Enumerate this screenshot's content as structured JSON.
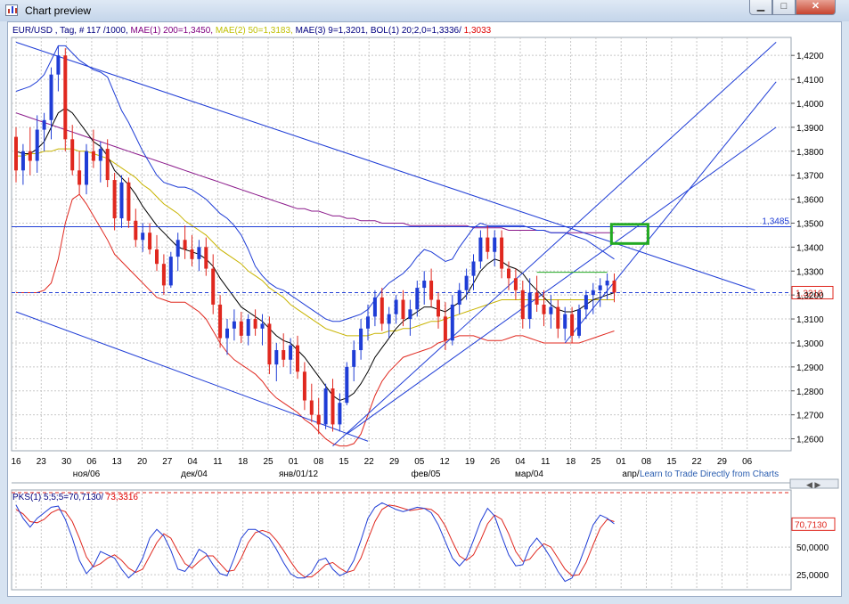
{
  "window": {
    "title": "Chart preview",
    "min_glyph": "▁",
    "max_glyph": "□",
    "close_glyph": "✕"
  },
  "link_text": "Learn to Trade Directly from Charts",
  "legend": [
    {
      "text": "EUR/USD , Tag, # 117 /1000,",
      "color": "#000080"
    },
    {
      "text": "MAE(1) 200=1,3450,",
      "color": "#800080"
    },
    {
      "text": "MAE(2) 50=1,3183,",
      "color": "#bfbf00"
    },
    {
      "text": "MAE(3) 9=1,3201,",
      "color": "#000080"
    },
    {
      "text": "BOL(1) 20;2,0=1,3336/",
      "color": "#000080"
    },
    {
      "text": "1,3033",
      "color": "#e00000"
    }
  ],
  "pks_legend": [
    {
      "text": "PKS(1) 5;5;5=70,7130/",
      "color": "#000080"
    },
    {
      "text": "73,3316",
      "color": "#e00000"
    }
  ],
  "colors": {
    "up": "#1f3dd6",
    "down": "#e0281f",
    "ma200": "#8b1a8b",
    "ma50": "#c8b400",
    "ma9": "#000000",
    "bb_upper": "#1f3dd6",
    "bb_lower": "#e0281f",
    "lines": "#1f3dd6",
    "box": "#22aa22",
    "grid": "#c7c7c7"
  },
  "chart_data": {
    "type": "candlestick",
    "symbol": "EUR/USD",
    "timeframe": "Tag",
    "ylim": [
      1.255,
      1.4275
    ],
    "y_ticks": [
      "1,4200",
      "1,4100",
      "1,4000",
      "1,3900",
      "1,3800",
      "1,3700",
      "1,3600",
      "1,3500",
      "1,3400",
      "1,3300",
      "1,3200",
      "1,3100",
      "1,3000",
      "1,2900",
      "1,2800",
      "1,2700",
      "1,2600"
    ],
    "y_tick_values": [
      1.42,
      1.41,
      1.4,
      1.39,
      1.38,
      1.37,
      1.36,
      1.35,
      1.34,
      1.33,
      1.32,
      1.31,
      1.3,
      1.29,
      1.28,
      1.27,
      1.26
    ],
    "x_day_ticks": [
      "16",
      "23",
      "30",
      "06",
      "13",
      "20",
      "27",
      "04",
      "11",
      "18",
      "25",
      "01",
      "08",
      "15",
      "22",
      "29",
      "05",
      "12",
      "19",
      "26",
      "04",
      "11",
      "18",
      "25",
      "01",
      "08",
      "15",
      "22",
      "29",
      "06"
    ],
    "x_month_labels": [
      "ноя/06",
      "дек/04",
      "янв/01/12",
      "фев/05",
      "мар/04",
      "апр/"
    ],
    "price_labels": [
      "1,3485",
      "1,3210"
    ],
    "hline_values": [
      1.3485,
      1.321
    ],
    "candles_ohlc": [
      [
        1.386,
        1.39,
        1.367,
        1.372
      ],
      [
        1.372,
        1.383,
        1.366,
        1.38
      ],
      [
        1.38,
        1.39,
        1.37,
        1.376
      ],
      [
        1.376,
        1.395,
        1.371,
        1.389
      ],
      [
        1.389,
        1.396,
        1.38,
        1.393
      ],
      [
        1.393,
        1.415,
        1.385,
        1.412
      ],
      [
        1.412,
        1.424,
        1.405,
        1.42
      ],
      [
        1.42,
        1.423,
        1.38,
        1.385
      ],
      [
        1.385,
        1.391,
        1.37,
        1.372
      ],
      [
        1.372,
        1.38,
        1.362,
        1.366
      ],
      [
        1.366,
        1.383,
        1.362,
        1.38
      ],
      [
        1.38,
        1.389,
        1.373,
        1.376
      ],
      [
        1.376,
        1.384,
        1.367,
        1.381
      ],
      [
        1.381,
        1.385,
        1.365,
        1.368
      ],
      [
        1.368,
        1.371,
        1.347,
        1.352
      ],
      [
        1.352,
        1.37,
        1.348,
        1.367
      ],
      [
        1.367,
        1.369,
        1.348,
        1.351
      ],
      [
        1.351,
        1.356,
        1.34,
        1.343
      ],
      [
        1.343,
        1.35,
        1.338,
        1.346
      ],
      [
        1.346,
        1.35,
        1.337,
        1.339
      ],
      [
        1.339,
        1.345,
        1.33,
        1.333
      ],
      [
        1.333,
        1.337,
        1.32,
        1.324
      ],
      [
        1.324,
        1.338,
        1.323,
        1.336
      ],
      [
        1.336,
        1.346,
        1.33,
        1.343
      ],
      [
        1.343,
        1.349,
        1.335,
        1.339
      ],
      [
        1.339,
        1.345,
        1.332,
        1.335
      ],
      [
        1.335,
        1.343,
        1.33,
        1.34
      ],
      [
        1.34,
        1.344,
        1.328,
        1.331
      ],
      [
        1.331,
        1.337,
        1.312,
        1.316
      ],
      [
        1.316,
        1.32,
        1.298,
        1.302
      ],
      [
        1.302,
        1.31,
        1.295,
        1.306
      ],
      [
        1.306,
        1.314,
        1.301,
        1.309
      ],
      [
        1.309,
        1.313,
        1.3,
        1.303
      ],
      [
        1.303,
        1.312,
        1.299,
        1.31
      ],
      [
        1.31,
        1.314,
        1.303,
        1.306
      ],
      [
        1.306,
        1.312,
        1.299,
        1.308
      ],
      [
        1.308,
        1.311,
        1.287,
        1.291
      ],
      [
        1.291,
        1.3,
        1.284,
        1.297
      ],
      [
        1.297,
        1.304,
        1.29,
        1.293
      ],
      [
        1.293,
        1.302,
        1.287,
        1.299
      ],
      [
        1.299,
        1.303,
        1.285,
        1.288
      ],
      [
        1.288,
        1.292,
        1.272,
        1.276
      ],
      [
        1.276,
        1.283,
        1.267,
        1.27
      ],
      [
        1.27,
        1.277,
        1.262,
        1.266
      ],
      [
        1.266,
        1.283,
        1.264,
        1.281
      ],
      [
        1.281,
        1.285,
        1.263,
        1.266
      ],
      [
        1.266,
        1.279,
        1.263,
        1.275
      ],
      [
        1.275,
        1.292,
        1.274,
        1.29
      ],
      [
        1.29,
        1.301,
        1.284,
        1.297
      ],
      [
        1.297,
        1.31,
        1.293,
        1.306
      ],
      [
        1.306,
        1.316,
        1.301,
        1.311
      ],
      [
        1.311,
        1.322,
        1.307,
        1.319
      ],
      [
        1.319,
        1.323,
        1.305,
        1.308
      ],
      [
        1.308,
        1.315,
        1.302,
        1.312
      ],
      [
        1.312,
        1.32,
        1.308,
        1.318
      ],
      [
        1.318,
        1.322,
        1.307,
        1.31
      ],
      [
        1.31,
        1.318,
        1.303,
        1.314
      ],
      [
        1.314,
        1.326,
        1.311,
        1.323
      ],
      [
        1.323,
        1.33,
        1.316,
        1.326
      ],
      [
        1.326,
        1.331,
        1.315,
        1.318
      ],
      [
        1.318,
        1.321,
        1.306,
        1.311
      ],
      [
        1.311,
        1.317,
        1.297,
        1.301
      ],
      [
        1.301,
        1.32,
        1.299,
        1.316
      ],
      [
        1.316,
        1.325,
        1.312,
        1.322
      ],
      [
        1.322,
        1.331,
        1.318,
        1.328
      ],
      [
        1.328,
        1.337,
        1.322,
        1.334
      ],
      [
        1.334,
        1.347,
        1.331,
        1.344
      ],
      [
        1.344,
        1.349,
        1.335,
        1.338
      ],
      [
        1.338,
        1.347,
        1.332,
        1.344
      ],
      [
        1.344,
        1.347,
        1.327,
        1.331
      ],
      [
        1.331,
        1.334,
        1.322,
        1.327
      ],
      [
        1.327,
        1.331,
        1.318,
        1.322
      ],
      [
        1.322,
        1.326,
        1.306,
        1.31
      ],
      [
        1.31,
        1.327,
        1.306,
        1.321
      ],
      [
        1.321,
        1.328,
        1.313,
        1.316
      ],
      [
        1.316,
        1.322,
        1.307,
        1.312
      ],
      [
        1.312,
        1.32,
        1.306,
        1.315
      ],
      [
        1.315,
        1.318,
        1.302,
        1.306
      ],
      [
        1.306,
        1.315,
        1.301,
        1.312
      ],
      [
        1.312,
        1.315,
        1.3,
        1.303
      ],
      [
        1.303,
        1.316,
        1.302,
        1.314
      ],
      [
        1.314,
        1.322,
        1.31,
        1.32
      ],
      [
        1.32,
        1.325,
        1.312,
        1.322
      ],
      [
        1.322,
        1.327,
        1.315,
        1.324
      ],
      [
        1.324,
        1.329,
        1.318,
        1.326
      ],
      [
        1.326,
        1.329,
        1.317,
        1.321
      ]
    ],
    "ma200": [
      1.396,
      1.395,
      1.394,
      1.393,
      1.392,
      1.391,
      1.39,
      1.389,
      1.388,
      1.387,
      1.386,
      1.385,
      1.384,
      1.383,
      1.382,
      1.381,
      1.38,
      1.379,
      1.378,
      1.377,
      1.376,
      1.375,
      1.374,
      1.373,
      1.372,
      1.371,
      1.37,
      1.369,
      1.368,
      1.367,
      1.366,
      1.365,
      1.364,
      1.363,
      1.362,
      1.361,
      1.36,
      1.359,
      1.358,
      1.357,
      1.356,
      1.356,
      1.355,
      1.355,
      1.354,
      1.353,
      1.353,
      1.352,
      1.352,
      1.351,
      1.351,
      1.351,
      1.35,
      1.35,
      1.35,
      1.35,
      1.349,
      1.349,
      1.349,
      1.349,
      1.349,
      1.349,
      1.349,
      1.349,
      1.349,
      1.348,
      1.348,
      1.348,
      1.348,
      1.348,
      1.347,
      1.347,
      1.347,
      1.347,
      1.347,
      1.347,
      1.346,
      1.346,
      1.346,
      1.346,
      1.346,
      1.346,
      1.346,
      1.346,
      1.346,
      1.346
    ],
    "ma50": [
      1.378,
      1.378,
      1.379,
      1.379,
      1.38,
      1.38,
      1.381,
      1.381,
      1.381,
      1.38,
      1.38,
      1.379,
      1.378,
      1.377,
      1.375,
      1.373,
      1.371,
      1.369,
      1.366,
      1.364,
      1.361,
      1.358,
      1.356,
      1.354,
      1.351,
      1.349,
      1.347,
      1.345,
      1.342,
      1.339,
      1.337,
      1.335,
      1.333,
      1.33,
      1.328,
      1.326,
      1.323,
      1.321,
      1.319,
      1.316,
      1.314,
      1.312,
      1.31,
      1.308,
      1.306,
      1.305,
      1.304,
      1.303,
      1.303,
      1.303,
      1.303,
      1.304,
      1.304,
      1.305,
      1.305,
      1.306,
      1.306,
      1.307,
      1.308,
      1.309,
      1.309,
      1.31,
      1.311,
      1.312,
      1.313,
      1.314,
      1.315,
      1.316,
      1.317,
      1.318,
      1.318,
      1.318,
      1.318,
      1.318,
      1.318,
      1.318,
      1.318,
      1.318,
      1.318,
      1.318,
      1.318,
      1.318,
      1.318,
      1.318,
      1.318,
      1.318
    ],
    "ma9": [
      1.38,
      1.379,
      1.379,
      1.381,
      1.384,
      1.39,
      1.396,
      1.398,
      1.396,
      1.392,
      1.388,
      1.384,
      1.382,
      1.378,
      1.372,
      1.369,
      1.366,
      1.362,
      1.357,
      1.353,
      1.349,
      1.346,
      1.343,
      1.34,
      1.339,
      1.338,
      1.337,
      1.335,
      1.332,
      1.327,
      1.323,
      1.319,
      1.315,
      1.313,
      1.311,
      1.309,
      1.306,
      1.303,
      1.301,
      1.3,
      1.297,
      1.294,
      1.29,
      1.286,
      1.282,
      1.278,
      1.276,
      1.277,
      1.279,
      1.283,
      1.288,
      1.294,
      1.298,
      1.302,
      1.306,
      1.309,
      1.311,
      1.313,
      1.315,
      1.315,
      1.314,
      1.313,
      1.315,
      1.317,
      1.32,
      1.325,
      1.33,
      1.333,
      1.335,
      1.334,
      1.332,
      1.331,
      1.329,
      1.325,
      1.322,
      1.319,
      1.316,
      1.314,
      1.313,
      1.313,
      1.314,
      1.316,
      1.318,
      1.319,
      1.32,
      1.321
    ],
    "bb_upper": [
      1.405,
      1.406,
      1.407,
      1.409,
      1.412,
      1.418,
      1.424,
      1.424,
      1.421,
      1.418,
      1.416,
      1.414,
      1.413,
      1.411,
      1.404,
      1.397,
      1.392,
      1.386,
      1.38,
      1.375,
      1.37,
      1.367,
      1.366,
      1.365,
      1.365,
      1.364,
      1.362,
      1.36,
      1.357,
      1.354,
      1.352,
      1.349,
      1.345,
      1.339,
      1.332,
      1.328,
      1.325,
      1.323,
      1.322,
      1.32,
      1.318,
      1.316,
      1.314,
      1.312,
      1.31,
      1.309,
      1.309,
      1.31,
      1.311,
      1.312,
      1.314,
      1.318,
      1.322,
      1.325,
      1.327,
      1.329,
      1.332,
      1.336,
      1.339,
      1.338,
      1.336,
      1.334,
      1.335,
      1.34,
      1.344,
      1.348,
      1.35,
      1.349,
      1.349,
      1.349,
      1.349,
      1.349,
      1.349,
      1.348,
      1.347,
      1.347,
      1.346,
      1.346,
      1.346,
      1.345,
      1.344,
      1.343,
      1.341,
      1.339,
      1.337,
      1.335
    ],
    "bb_lower": [
      1.321,
      1.321,
      1.321,
      1.321,
      1.322,
      1.325,
      1.335,
      1.35,
      1.36,
      1.362,
      1.358,
      1.353,
      1.348,
      1.343,
      1.337,
      1.334,
      1.331,
      1.328,
      1.325,
      1.322,
      1.319,
      1.318,
      1.317,
      1.317,
      1.317,
      1.315,
      1.313,
      1.31,
      1.305,
      1.3,
      1.296,
      1.293,
      1.291,
      1.289,
      1.287,
      1.284,
      1.28,
      1.277,
      1.275,
      1.273,
      1.271,
      1.268,
      1.266,
      1.263,
      1.26,
      1.258,
      1.257,
      1.257,
      1.258,
      1.262,
      1.27,
      1.278,
      1.284,
      1.288,
      1.291,
      1.294,
      1.295,
      1.296,
      1.297,
      1.298,
      1.3,
      1.301,
      1.302,
      1.303,
      1.303,
      1.303,
      1.302,
      1.301,
      1.301,
      1.301,
      1.302,
      1.303,
      1.303,
      1.302,
      1.301,
      1.3,
      1.3,
      1.3,
      1.3,
      1.3,
      1.3,
      1.301,
      1.302,
      1.303,
      1.304,
      1.305
    ],
    "trendlines": [
      {
        "from": [
          0,
          1.4255
        ],
        "to": [
          105,
          1.322
        ]
      },
      {
        "from": [
          0,
          1.313
        ],
        "to": [
          50,
          1.259
        ]
      },
      {
        "from": [
          45,
          1.257
        ],
        "to": [
          108,
          1.4255
        ]
      },
      {
        "from": [
          47,
          1.262
        ],
        "to": [
          108,
          1.39
        ]
      },
      {
        "from": [
          78,
          1.3
        ],
        "to": [
          108,
          1.409
        ]
      }
    ],
    "flat_line": {
      "from": [
        74,
        1.3295
      ],
      "to": [
        84,
        1.3295
      ]
    },
    "box": {
      "x": [
        84.6,
        89.8
      ],
      "y": [
        1.3415,
        1.3495
      ]
    },
    "pks": {
      "ylim": [
        13,
        100
      ],
      "y_ticks": [
        "50,0000",
        "25,0000"
      ],
      "y_tick_values": [
        50,
        25
      ],
      "value_label": "70,7130",
      "k": [
        88,
        76,
        68,
        76,
        81,
        86,
        87,
        75,
        58,
        38,
        26,
        33,
        46,
        43,
        40,
        30,
        22,
        28,
        40,
        58,
        66,
        60,
        47,
        30,
        28,
        36,
        48,
        44,
        34,
        26,
        24,
        40,
        58,
        66,
        66,
        62,
        58,
        48,
        36,
        26,
        22,
        22,
        27,
        38,
        40,
        30,
        24,
        27,
        38,
        56,
        76,
        86,
        90,
        87,
        84,
        82,
        84,
        86,
        85,
        81,
        70,
        55,
        40,
        33,
        40,
        56,
        73,
        85,
        78,
        60,
        43,
        33,
        34,
        50,
        58,
        50,
        40,
        28,
        19,
        22,
        35,
        52,
        70,
        79,
        76,
        71
      ],
      "d": [
        84,
        80,
        73,
        72,
        75,
        81,
        84,
        82,
        73,
        58,
        41,
        32,
        35,
        40,
        43,
        38,
        31,
        27,
        30,
        42,
        54,
        62,
        58,
        46,
        35,
        31,
        37,
        42,
        42,
        35,
        28,
        29,
        40,
        54,
        63,
        65,
        63,
        56,
        47,
        37,
        28,
        23,
        23,
        28,
        34,
        36,
        31,
        27,
        29,
        40,
        57,
        73,
        84,
        88,
        87,
        85,
        83,
        84,
        85,
        84,
        79,
        69,
        55,
        42,
        38,
        43,
        56,
        71,
        79,
        75,
        62,
        46,
        37,
        39,
        47,
        53,
        50,
        40,
        30,
        24,
        25,
        36,
        52,
        67,
        75,
        73
      ]
    }
  }
}
